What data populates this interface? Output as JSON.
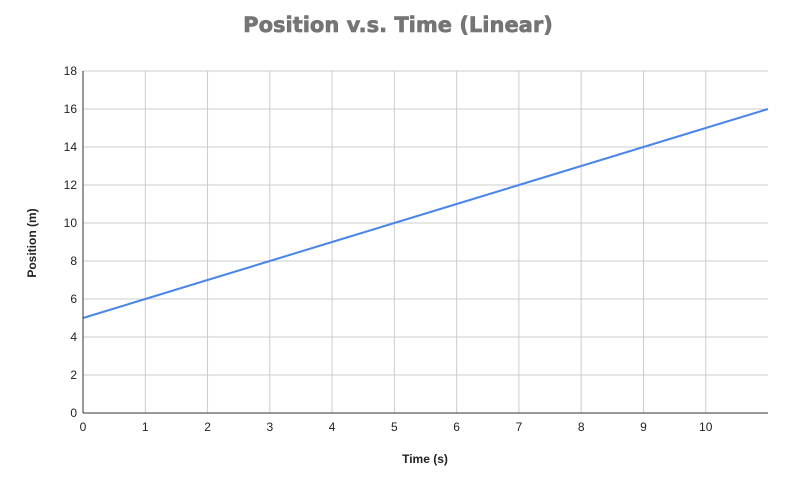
{
  "chart_data": {
    "type": "line",
    "title": "Position v.s. Time (Linear)",
    "xlabel": "Time (s)",
    "ylabel": "Position (m)",
    "x": [
      0,
      1,
      2,
      3,
      4,
      5,
      6,
      7,
      8,
      9,
      10,
      11
    ],
    "series": [
      {
        "values": [
          5,
          6,
          7,
          8,
          9,
          10,
          11,
          12,
          13,
          14,
          15,
          16
        ],
        "color": "#4a86e8"
      }
    ],
    "xlim": [
      0,
      11
    ],
    "ylim": [
      0,
      18
    ],
    "x_ticks": [
      "0",
      "1",
      "2",
      "3",
      "4",
      "5",
      "6",
      "7",
      "8",
      "9",
      "10"
    ],
    "y_ticks": [
      "0",
      "2",
      "4",
      "6",
      "8",
      "10",
      "12",
      "14",
      "16",
      "18"
    ],
    "grid": true,
    "legend": "none",
    "colors": {
      "line": "#4a86e8",
      "grid": "#cccccc",
      "title": "#757575"
    }
  }
}
